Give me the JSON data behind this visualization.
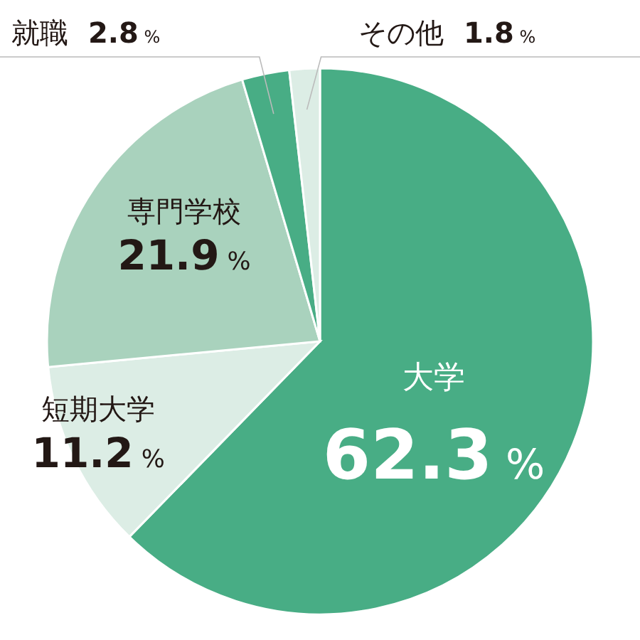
{
  "chart_data": {
    "type": "pie",
    "categories": [
      "大学",
      "短期大学",
      "専門学校",
      "就職",
      "その他"
    ],
    "values": [
      62.3,
      11.2,
      21.9,
      2.8,
      1.8
    ],
    "value_labels": [
      "62.3%",
      "11.2%",
      "21.9%",
      "2.8%",
      "1.8%"
    ],
    "colors": [
      "#48ad85",
      "#dcede5",
      "#a9d2bd",
      "#48ad85",
      "#dcede5"
    ]
  }
}
